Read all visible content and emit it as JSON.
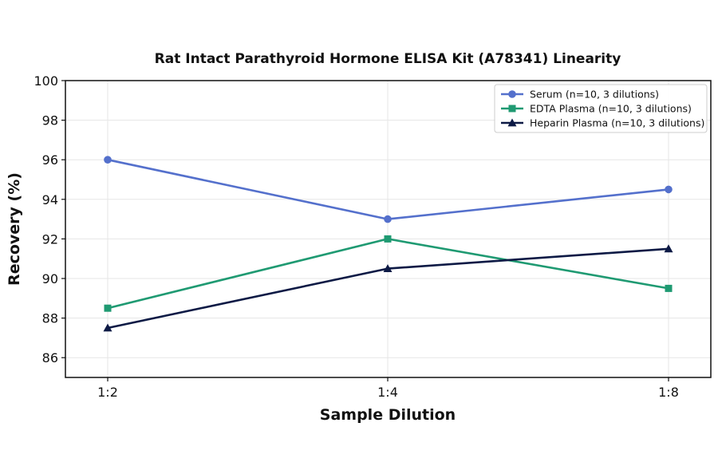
{
  "chart_data": {
    "type": "line",
    "title": "Rat Intact Parathyroid Hormone ELISA Kit (A78341) Linearity",
    "xlabel": "Sample Dilution",
    "ylabel": "Recovery (%)",
    "categories": [
      "1:2",
      "1:4",
      "1:8"
    ],
    "ylim": [
      85,
      100
    ],
    "yticks": [
      86,
      88,
      90,
      92,
      94,
      96,
      98,
      100
    ],
    "grid": true,
    "legend_position": "top-right",
    "series": [
      {
        "name": "Serum (n=10, 3 dilutions)",
        "values": [
          96,
          93,
          94.5
        ],
        "color": "#5470cc",
        "marker": "circle"
      },
      {
        "name": "EDTA Plasma (n=10, 3 dilutions)",
        "values": [
          88.5,
          92,
          89.5
        ],
        "color": "#1f9a72",
        "marker": "square"
      },
      {
        "name": "Heparin Plasma (n=10, 3 dilutions)",
        "values": [
          87.5,
          90.5,
          91.5
        ],
        "color": "#0d1a45",
        "marker": "triangle"
      }
    ]
  }
}
